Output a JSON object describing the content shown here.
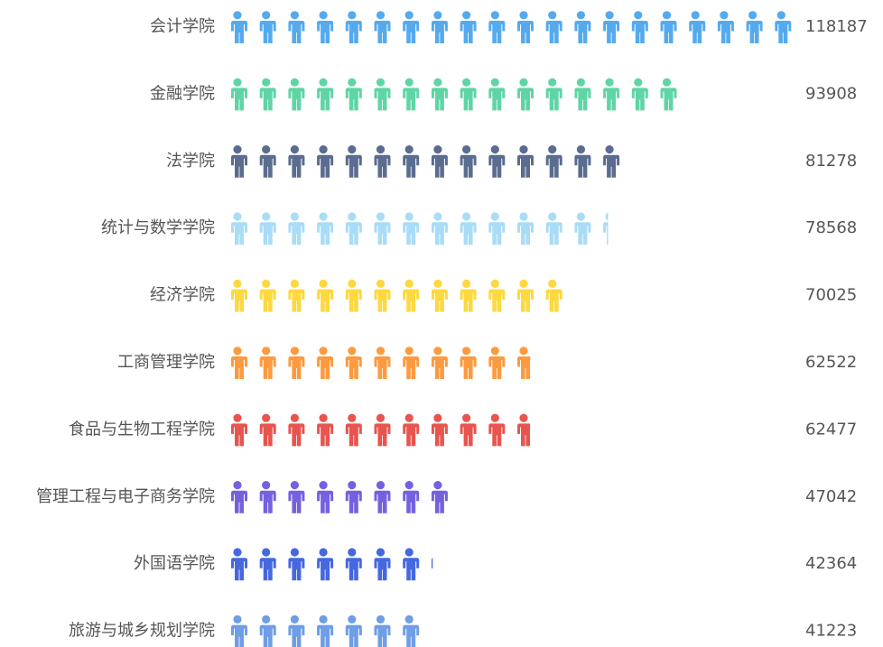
{
  "chart_data": {
    "type": "pictorialBar",
    "categories": [
      "会计学院",
      "金融学院",
      "法学院",
      "统计与数学学院",
      "经济学院",
      "工商管理学院",
      "食品与生物工程学院",
      "管理工程与电子商务学院",
      "外国语学院",
      "旅游与城乡规划学院"
    ],
    "values": [
      118187,
      93908,
      81278,
      78568,
      70025,
      62522,
      62477,
      47042,
      42364,
      41223
    ],
    "colors": [
      "#55aaee",
      "#5fd5a5",
      "#5a6c8f",
      "#a9dcf7",
      "#fdd83f",
      "#fd9a40",
      "#e8544e",
      "#7461e0",
      "#4568df",
      "#6f9de6"
    ]
  }
}
